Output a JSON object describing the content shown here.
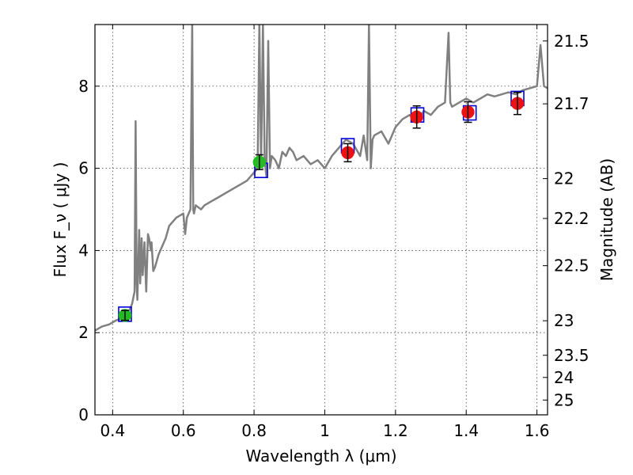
{
  "chart_data": {
    "type": "scatter",
    "xlabel": "Wavelength  λ (μm)",
    "ylabel": "Flux  F_ν  ( μJy )",
    "ylabel_right": "Magnitude (AB)",
    "xlim": [
      0.35,
      1.63
    ],
    "ylim": [
      0,
      9.5
    ],
    "x_ticks": [
      0.4,
      0.6,
      0.8,
      1.0,
      1.2,
      1.4,
      1.6
    ],
    "x_tick_labels": [
      "0.4",
      "0.6",
      "0.8",
      "1",
      "1.2",
      "1.4",
      "1.6"
    ],
    "y_ticks": [
      0,
      2,
      4,
      6,
      8
    ],
    "y_tick_labels": [
      "0",
      "2",
      "4",
      "6",
      "8"
    ],
    "right_ticks": [
      {
        "label": "21.5",
        "flux": 9.1
      },
      {
        "label": "21.7",
        "flux": 7.57
      },
      {
        "label": "22",
        "flux": 5.75
      },
      {
        "label": "22.2",
        "flux": 4.78
      },
      {
        "label": "22.5",
        "flux": 3.63
      },
      {
        "label": "23",
        "flux": 2.29
      },
      {
        "label": "23.5",
        "flux": 1.45
      },
      {
        "label": "24",
        "flux": 0.91
      },
      {
        "label": "25",
        "flux": 0.36
      }
    ],
    "grid": true,
    "colors": {
      "spectrum": "#808080",
      "green_points": "#22bb22",
      "red_points": "#ee1111",
      "model_boxes": "#0000dd",
      "errorbars": "#000000"
    },
    "spectrum": {
      "x": [
        0.35,
        0.37,
        0.39,
        0.41,
        0.43,
        0.445,
        0.455,
        0.462,
        0.465,
        0.468,
        0.47,
        0.475,
        0.478,
        0.482,
        0.485,
        0.49,
        0.495,
        0.5,
        0.503,
        0.508,
        0.51,
        0.515,
        0.52,
        0.53,
        0.54,
        0.55,
        0.56,
        0.58,
        0.6,
        0.605,
        0.61,
        0.62,
        0.625,
        0.628,
        0.63,
        0.635,
        0.65,
        0.66,
        0.68,
        0.7,
        0.72,
        0.74,
        0.76,
        0.78,
        0.79,
        0.8,
        0.81,
        0.815,
        0.82,
        0.825,
        0.83,
        0.835,
        0.84,
        0.845,
        0.85,
        0.86,
        0.87,
        0.88,
        0.89,
        0.9,
        0.91,
        0.92,
        0.94,
        0.96,
        0.98,
        1.0,
        1.02,
        1.04,
        1.06,
        1.08,
        1.1,
        1.11,
        1.12,
        1.125,
        1.13,
        1.135,
        1.14,
        1.16,
        1.18,
        1.2,
        1.22,
        1.24,
        1.26,
        1.28,
        1.3,
        1.32,
        1.34,
        1.35,
        1.355,
        1.36,
        1.38,
        1.4,
        1.42,
        1.44,
        1.46,
        1.48,
        1.5,
        1.52,
        1.54,
        1.56,
        1.58,
        1.6,
        1.61,
        1.62,
        1.63
      ],
      "y": [
        2.05,
        2.15,
        2.2,
        2.3,
        2.35,
        2.5,
        2.7,
        3.0,
        7.15,
        3.2,
        2.8,
        4.5,
        3.2,
        4.3,
        3.4,
        4.2,
        3.0,
        4.4,
        4.3,
        4.0,
        4.2,
        3.5,
        3.6,
        3.9,
        4.1,
        4.3,
        4.6,
        4.8,
        4.9,
        4.4,
        4.8,
        5.0,
        9.5,
        5.0,
        4.9,
        5.1,
        5.0,
        5.1,
        5.2,
        5.3,
        5.4,
        5.5,
        5.6,
        5.7,
        5.8,
        5.9,
        6.0,
        9.5,
        6.1,
        9.5,
        6.2,
        5.8,
        9.1,
        6.0,
        6.3,
        6.2,
        6.0,
        6.4,
        6.3,
        6.5,
        6.4,
        6.2,
        6.3,
        6.1,
        6.2,
        6.0,
        6.3,
        6.5,
        6.7,
        6.6,
        6.3,
        6.8,
        6.2,
        9.5,
        6.0,
        6.7,
        6.8,
        6.9,
        6.6,
        7.0,
        7.2,
        7.3,
        7.1,
        7.4,
        7.3,
        7.5,
        7.6,
        9.3,
        7.6,
        7.5,
        7.6,
        7.7,
        7.6,
        7.7,
        7.8,
        7.75,
        7.8,
        7.85,
        7.8,
        7.9,
        7.95,
        8.0,
        9.0,
        8.0,
        7.95
      ]
    },
    "series": [
      {
        "type": "model_box",
        "points": [
          {
            "x": 0.435,
            "y": 2.45
          },
          {
            "x": 0.82,
            "y": 5.95
          },
          {
            "x": 1.065,
            "y": 6.55
          },
          {
            "x": 1.262,
            "y": 7.3
          },
          {
            "x": 1.41,
            "y": 7.35
          },
          {
            "x": 1.545,
            "y": 7.7
          }
        ]
      },
      {
        "type": "observed_green",
        "points": [
          {
            "x": 0.435,
            "y": 2.42,
            "err": 0.12
          },
          {
            "x": 0.815,
            "y": 6.15,
            "err": 0.18
          }
        ]
      },
      {
        "type": "observed_red",
        "points": [
          {
            "x": 1.065,
            "y": 6.38,
            "err": 0.22
          },
          {
            "x": 1.26,
            "y": 7.25,
            "err": 0.27
          },
          {
            "x": 1.405,
            "y": 7.37,
            "err": 0.25
          },
          {
            "x": 1.545,
            "y": 7.58,
            "err": 0.27
          }
        ]
      }
    ]
  }
}
